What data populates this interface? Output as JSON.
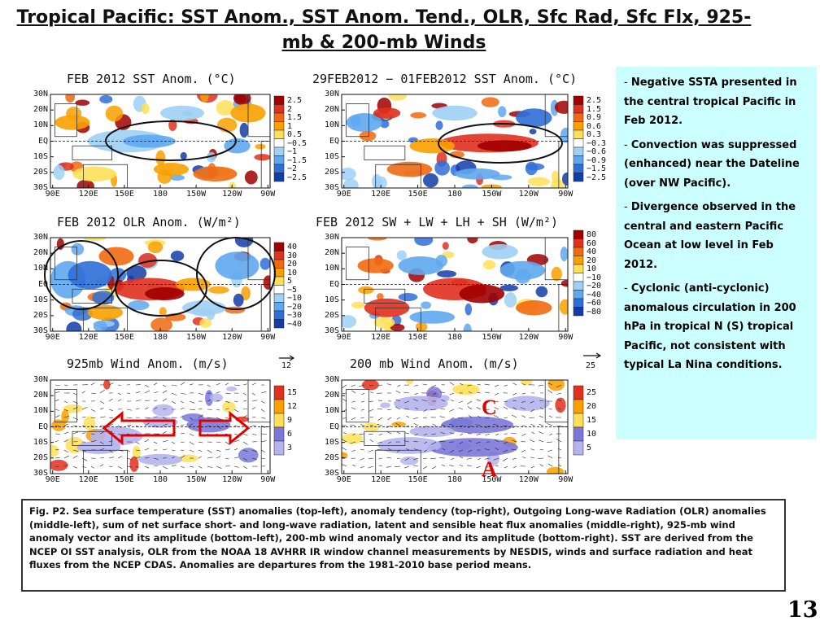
{
  "slide": {
    "title": "Tropical Pacific: SST Anom., SST Anom. Tend., OLR, Sfc Rad, Sfc Flx, 925-mb & 200-mb Winds",
    "page_number": "13"
  },
  "axes": {
    "lat_labels": [
      "30N",
      "20N",
      "10N",
      "EQ",
      "10S",
      "20S",
      "30S"
    ],
    "lon_labels": [
      "90E",
      "120E",
      "150E",
      "180",
      "150W",
      "120W",
      "90W"
    ]
  },
  "panels": [
    {
      "id": "sst-anom",
      "title": "FEB 2012 SST Anom. (°C)",
      "colorbar": [
        "2.5",
        "2",
        "1.5",
        "1",
        "0.5",
        "−0.5",
        "−1",
        "−1.5",
        "−2",
        "−2.5"
      ],
      "colorbar_colors": [
        "#a00000",
        "#e0301e",
        "#f06a10",
        "#f9a000",
        "#fde058",
        "#ffffff",
        "#9fd0f5",
        "#5fa8ee",
        "#2f6fd8",
        "#123da8"
      ]
    },
    {
      "id": "sst-tend",
      "title": "29FEB2012 − 01FEB2012 SST Anom. (°C)",
      "colorbar": [
        "2.5",
        "1.5",
        "0.9",
        "0.6",
        "0.3",
        "−0.3",
        "−0.6",
        "−0.9",
        "−1.5",
        "−2.5"
      ],
      "colorbar_colors": [
        "#a00000",
        "#e0301e",
        "#f06a10",
        "#f9a000",
        "#fde058",
        "#ffffff",
        "#9fd0f5",
        "#5fa8ee",
        "#2f6fd8",
        "#123da8"
      ]
    },
    {
      "id": "olr-anom",
      "title": "FEB 2012 OLR Anom. (W/m²)",
      "colorbar": [
        "40",
        "30",
        "20",
        "10",
        "5",
        "−5",
        "−10",
        "−20",
        "−30",
        "−40"
      ],
      "colorbar_colors": [
        "#a00000",
        "#e0301e",
        "#f06a10",
        "#f9a000",
        "#fde058",
        "#ffffff",
        "#9fd0f5",
        "#5fa8ee",
        "#2f6fd8",
        "#123da8"
      ]
    },
    {
      "id": "sfc-flux",
      "title": "FEB 2012 SW + LW + LH + SH (W/m²)",
      "colorbar": [
        "80",
        "60",
        "40",
        "20",
        "10",
        "−10",
        "−20",
        "−40",
        "−60",
        "−80"
      ],
      "colorbar_colors": [
        "#a00000",
        "#e0301e",
        "#f06a10",
        "#f9a000",
        "#fde058",
        "#ffffff",
        "#9fd0f5",
        "#5fa8ee",
        "#2f6fd8",
        "#123da8"
      ]
    },
    {
      "id": "wind-925",
      "title": "925mb Wind Anom. (m/s)",
      "ref_arrow": "12",
      "colorbar": [
        "15",
        "12",
        "9",
        "6",
        "3"
      ],
      "colorbar_colors": [
        "#e0301e",
        "#f9a000",
        "#fde058",
        "#7a78d8",
        "#b4b4ee"
      ]
    },
    {
      "id": "wind-200",
      "title": "200 mb Wind Anom. (m/s)",
      "ref_arrow": "25",
      "colorbar": [
        "25",
        "20",
        "15",
        "10",
        "5"
      ],
      "colorbar_colors": [
        "#e0301e",
        "#f9a000",
        "#fde058",
        "#7a78d8",
        "#b4b4ee"
      ]
    }
  ],
  "markers": {
    "cyclonic": "C",
    "anticyclonic": "A"
  },
  "notes": [
    "Negative SSTA presented in the central tropical Pacific in Feb 2012.",
    "Convection was suppressed (enhanced) near the Dateline (over NW Pacific).",
    "Divergence observed in the central and eastern Pacific Ocean at  low level in Feb 2012.",
    "Cyclonic (anti-cyclonic) anomalous circulation in 200 hPa in tropical N (S) tropical Pacific, not consistent with typical La Nina conditions."
  ],
  "caption": "Fig. P2. Sea surface temperature (SST) anomalies (top-left), anomaly tendency (top-right), Outgoing Long-wave Radiation (OLR) anomalies (middle-left), sum of net surface short- and long-wave radiation, latent and sensible heat flux anomalies (middle-right), 925-mb wind anomaly vector and its amplitude (bottom-left), 200-mb wind anomaly vector and its amplitude  (bottom-right). SST are derived from the NCEP OI SST analysis, OLR from the NOAA 18 AVHRR IR window channel measurements by NESDIS, winds and surface radiation and heat fluxes from the NCEP CDAS. Anomalies are  departures from the 1981-2010 base period means."
}
